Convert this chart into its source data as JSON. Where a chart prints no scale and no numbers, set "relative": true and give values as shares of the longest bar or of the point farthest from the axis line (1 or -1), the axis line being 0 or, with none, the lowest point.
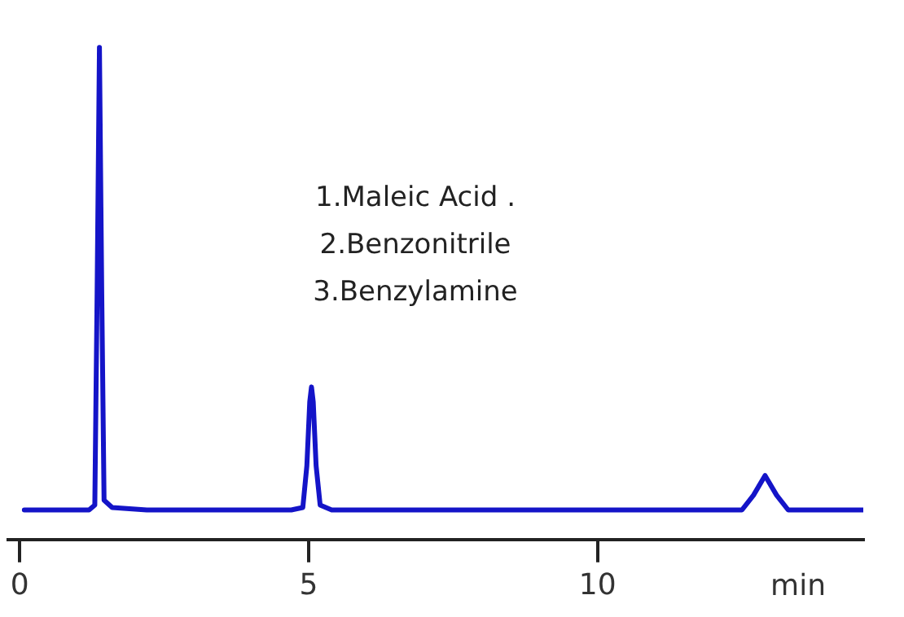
{
  "chart_data": {
    "type": "line",
    "relative": true,
    "xlabel": "min",
    "xlim": [
      -0.2,
      14.6
    ],
    "xticks": [
      0,
      5,
      10
    ],
    "grid": false,
    "legend": false,
    "marker": "none",
    "line_style": "solid",
    "annotations": [
      "1.Maleic Acid .",
      "2.Benzonitrile",
      "3.Benzylamine"
    ],
    "series": [
      {
        "color": "#1414c8",
        "x": [
          0.08,
          1.2,
          1.3,
          1.34,
          1.38,
          1.42,
          1.46,
          1.6,
          2.2,
          4.7,
          4.9,
          4.97,
          5.02,
          5.05,
          5.08,
          5.13,
          5.2,
          5.4,
          12.5,
          12.7,
          12.9,
          13.1,
          13.3,
          14.6
        ],
        "values": [
          0.06,
          0.06,
          0.07,
          0.5,
          1,
          0.5,
          0.08,
          0.065,
          0.06,
          0.06,
          0.065,
          0.15,
          0.28,
          0.31,
          0.28,
          0.15,
          0.07,
          0.06,
          0.06,
          0.09,
          0.13,
          0.09,
          0.06,
          0.06
        ]
      }
    ]
  }
}
